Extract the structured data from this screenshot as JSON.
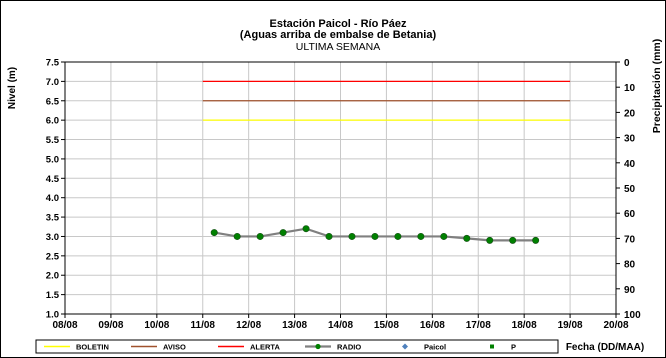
{
  "chart_data": {
    "type": "line",
    "title_lines": [
      "Estación Paicol  - Río Páez",
      "(Aguas arriba de embalse de Betania)",
      "ULTIMA SEMANA"
    ],
    "ylabel_left": "Nivel (m)",
    "ylabel_right": "Precipitación (mm)",
    "xlabel": "Fecha  (DD/MAA)",
    "x_ticks": [
      "08/08",
      "09/08",
      "10/08",
      "11/08",
      "12/08",
      "13/08",
      "14/08",
      "15/08",
      "16/08",
      "17/08",
      "18/08",
      "19/08",
      "20/08"
    ],
    "y_left_ticks": [
      "1.0",
      "1.5",
      "2.0",
      "2.5",
      "3.0",
      "3.5",
      "4.0",
      "4.5",
      "5.0",
      "5.5",
      "6.0",
      "6.5",
      "7.0",
      "7.5"
    ],
    "y_right_ticks": [
      "0",
      "10",
      "20",
      "30",
      "40",
      "50",
      "60",
      "70",
      "80",
      "90",
      "100"
    ],
    "ylim_left": [
      1.0,
      7.5
    ],
    "ylim_right": [
      100,
      0
    ],
    "grid": true,
    "thresholds": [
      {
        "name": "BOLETIN",
        "value": 6.0,
        "color": "#ffff00",
        "x_range": [
          "11/08",
          "19/08"
        ]
      },
      {
        "name": "AVISO",
        "value": 6.5,
        "color": "#a0522d",
        "x_range": [
          "11/08",
          "19/08"
        ]
      },
      {
        "name": "ALERTA",
        "value": 7.0,
        "color": "#ff0000",
        "x_range": [
          "11/08",
          "19/08"
        ]
      }
    ],
    "series": [
      {
        "name": "RADIO",
        "color": "#808080",
        "marker_color": "#008000",
        "points": [
          {
            "x": "11/08 06:00",
            "y": 3.1
          },
          {
            "x": "11/08 18:00",
            "y": 3.0
          },
          {
            "x": "12/08 06:00",
            "y": 3.0
          },
          {
            "x": "12/08 18:00",
            "y": 3.1
          },
          {
            "x": "13/08 06:00",
            "y": 3.2
          },
          {
            "x": "13/08 18:00",
            "y": 3.0
          },
          {
            "x": "14/08 06:00",
            "y": 3.0
          },
          {
            "x": "14/08 18:00",
            "y": 3.0
          },
          {
            "x": "15/08 06:00",
            "y": 3.0
          },
          {
            "x": "15/08 18:00",
            "y": 3.0
          },
          {
            "x": "16/08 06:00",
            "y": 3.0
          },
          {
            "x": "16/08 18:00",
            "y": 2.95
          },
          {
            "x": "17/08 06:00",
            "y": 2.9
          },
          {
            "x": "17/08 18:00",
            "y": 2.9
          },
          {
            "x": "18/08 06:00",
            "y": 2.9
          }
        ]
      }
    ],
    "legend": [
      {
        "name": "BOLETIN",
        "color": "#ffff00",
        "kind": "line"
      },
      {
        "name": "AVISO",
        "color": "#a0522d",
        "kind": "line"
      },
      {
        "name": "ALERTA",
        "color": "#ff0000",
        "kind": "line"
      },
      {
        "name": "RADIO",
        "color": "#808080",
        "marker_color": "#008000",
        "kind": "line-marker"
      },
      {
        "name": "Paicol",
        "color": "#4f81bd",
        "kind": "diamond"
      },
      {
        "name": "P",
        "color": "#008000",
        "kind": "square"
      }
    ],
    "legend_position": "bottom"
  }
}
